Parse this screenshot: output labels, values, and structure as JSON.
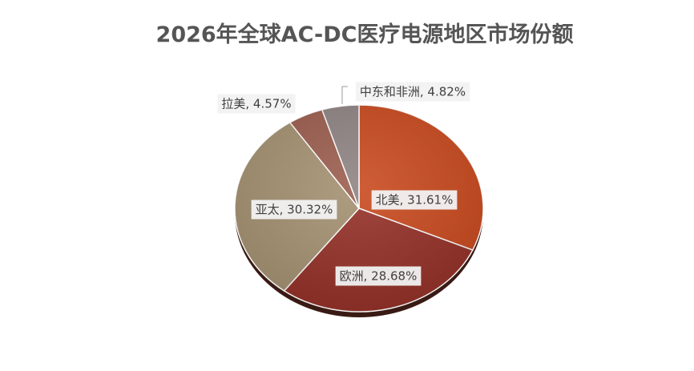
{
  "chart_data": {
    "type": "pie",
    "title": "2026年全球AC-DC医疗电源地区市场份额",
    "categories": [
      "北美",
      "欧洲",
      "亚太",
      "拉美",
      "中东和非洲"
    ],
    "values": [
      31.61,
      28.68,
      30.32,
      4.57,
      4.82
    ],
    "value_labels": [
      "北美, 31.61%",
      "欧洲, 28.68%",
      "亚太, 30.32%",
      "拉美, 4.57%",
      "中东和非洲, 4.82%"
    ],
    "colors": [
      "#c8481c",
      "#932f26",
      "#a39070",
      "#9a5c4c",
      "#8e8282"
    ]
  }
}
